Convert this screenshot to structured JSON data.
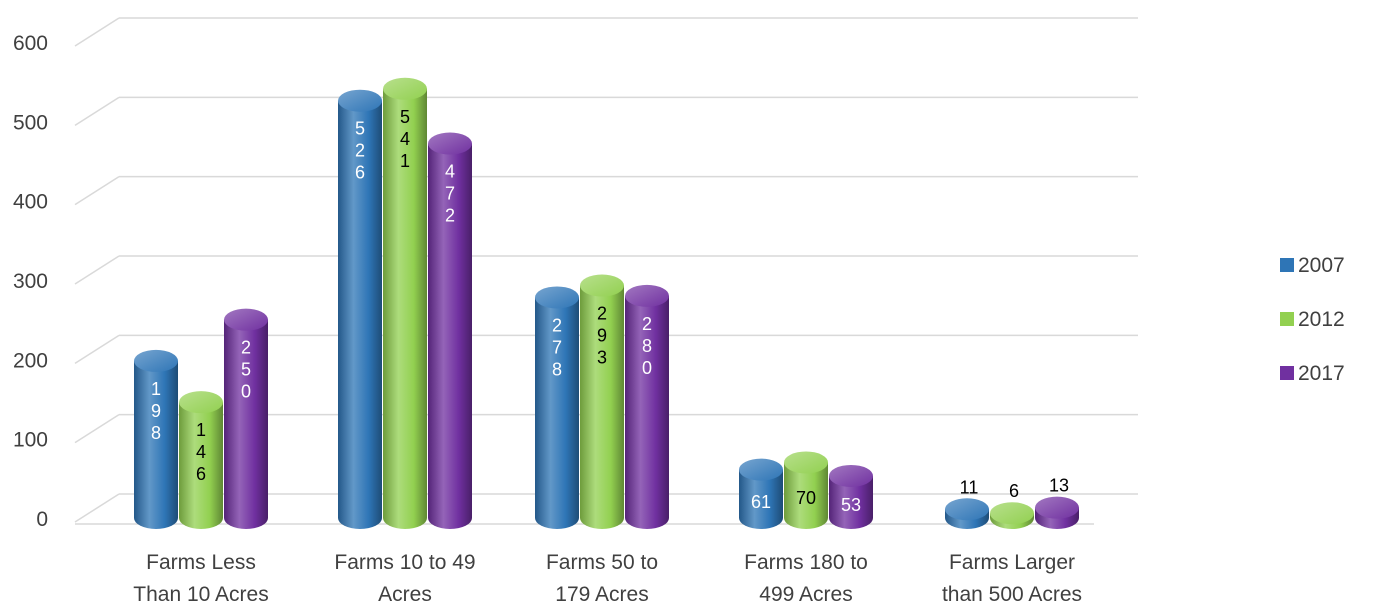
{
  "chart_data": {
    "type": "bar",
    "variant": "3d-cylinder",
    "title": "",
    "xlabel": "",
    "ylabel": "",
    "ylim": [
      0,
      600
    ],
    "yticks": [
      0,
      100,
      200,
      300,
      400,
      500,
      600
    ],
    "grid": true,
    "legend_position": "right",
    "categories": [
      [
        "Farms Less",
        "Than 10 Acres"
      ],
      [
        "Farms 10 to 49",
        "Acres"
      ],
      [
        "Farms 50 to",
        "179 Acres"
      ],
      [
        "Farms 180 to",
        "499 Acres"
      ],
      [
        "Farms Larger",
        "than 500 Acres"
      ]
    ],
    "series": [
      {
        "name": "2007",
        "color": "#2E75B6",
        "label_color": "#ffffff",
        "values": [
          198,
          526,
          278,
          61,
          11
        ]
      },
      {
        "name": "2012",
        "color": "#92D050",
        "label_color": "#000000",
        "values": [
          146,
          541,
          293,
          70,
          6
        ]
      },
      {
        "name": "2017",
        "color": "#7030A0",
        "label_color": "#ffffff",
        "values": [
          250,
          472,
          280,
          53,
          13
        ]
      }
    ]
  }
}
